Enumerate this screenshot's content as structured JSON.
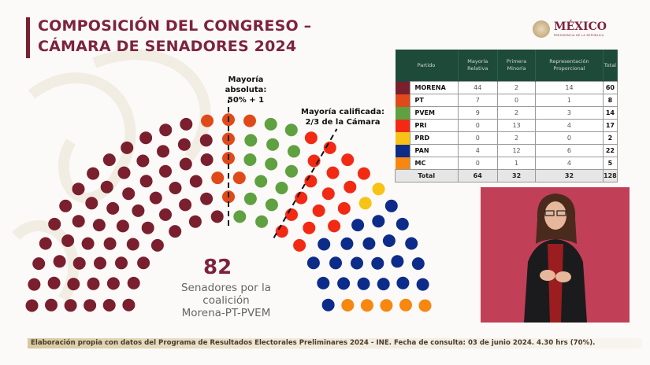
{
  "header": {
    "title_line1": "COMPOSICIÓN DEL CONGRESO –",
    "title_line2": "CÁMARA DE SENADORES 2024",
    "logo_text": "MÉXICO",
    "logo_subtext": "PRESIDENCIA DE LA REPÚBLICA"
  },
  "annotations": {
    "absolute_line1": "Mayoría absoluta:",
    "absolute_line2": "50% + 1",
    "qualified_line1": "Mayoría calificada:",
    "qualified_line2": "2/3 de la Cámara"
  },
  "coalition": {
    "count": "82",
    "line1": "Senadores por la",
    "line2": "coalición",
    "line3": "Morena-PT-PVEM"
  },
  "footer": {
    "source": "Elaboración propia con datos del Programa de Resultados Electorales Preliminares 2024 - INE. Fecha de consulta: 03 de junio 2024. 4.30 hrs (70%)."
  },
  "chart_data": {
    "type": "table",
    "title": "Cámara de Senadores 2024",
    "columns": [
      "Partido",
      "Mayoría Relativa",
      "Primera Minoría",
      "Representación Proporcional",
      "Total"
    ],
    "rows": [
      {
        "party": "MORENA",
        "color": "#7a1f2e",
        "mr": "44",
        "pm": "2",
        "rp": "14",
        "total": "60",
        "seats": 60
      },
      {
        "party": "PT",
        "color": "#e04a1a",
        "mr": "7",
        "pm": "0",
        "rp": "1",
        "total": "8",
        "seats": 8
      },
      {
        "party": "PVEM",
        "color": "#5fa040",
        "mr": "9",
        "pm": "2",
        "rp": "3",
        "total": "14",
        "seats": 14
      },
      {
        "party": "PRI",
        "color": "#f22a14",
        "mr": "0",
        "pm": "13",
        "rp": "4",
        "total": "17",
        "seats": 17
      },
      {
        "party": "PRD",
        "color": "#f7c316",
        "mr": "0",
        "pm": "2",
        "rp": "0",
        "total": "2",
        "seats": 2
      },
      {
        "party": "PAN",
        "color": "#0d2c8a",
        "mr": "4",
        "pm": "12",
        "rp": "6",
        "total": "22",
        "seats": 22
      },
      {
        "party": "MC",
        "color": "#f7870f",
        "mr": "0",
        "pm": "1",
        "rp": "4",
        "total": "5",
        "seats": 5
      }
    ],
    "total_row": {
      "label": "Total",
      "mr": "64",
      "pm": "32",
      "rp": "32",
      "total": "128"
    },
    "hemicycle": {
      "total_seats": 128,
      "absolute_majority_share": 0.5,
      "qualified_majority_share": 0.6667
    }
  }
}
